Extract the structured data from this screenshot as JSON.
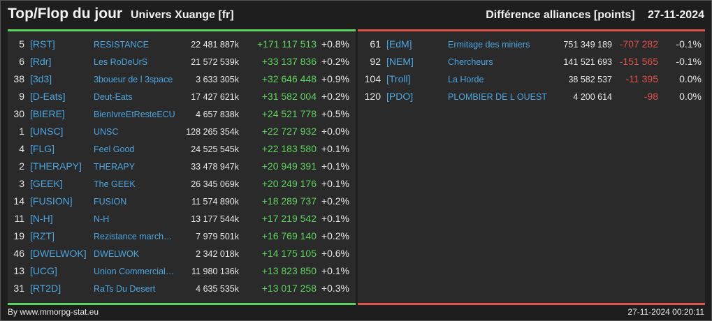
{
  "header": {
    "title": "Top/Flop du jour",
    "universe": "Univers Xuange [fr]",
    "section": "Différence alliances [points]",
    "date": "27-11-2024"
  },
  "colors": {
    "positive": "#5fd35f",
    "negative": "#e0524b",
    "link": "#4da6e0"
  },
  "top": [
    {
      "rank": "5",
      "tag": "[RST]",
      "name": "RESISTANCE",
      "points": "22 481 887k",
      "diff": "+171 117 513",
      "pct": "+0.8%"
    },
    {
      "rank": "6",
      "tag": "[Rdr]",
      "name": "Les RoDeUrS",
      "points": "21 572 539k",
      "diff": "+33 137 836",
      "pct": "+0.2%"
    },
    {
      "rank": "38",
      "tag": "[3d3]",
      "name": "3boueur de l 3space",
      "points": "3 633 305k",
      "diff": "+32 646 448",
      "pct": "+0.9%"
    },
    {
      "rank": "9",
      "tag": "[D-Eats]",
      "name": "Deut-Eats",
      "points": "17 427 621k",
      "diff": "+31 582 004",
      "pct": "+0.2%"
    },
    {
      "rank": "30",
      "tag": "[BIERE]",
      "name": "BienIvreEtResteECU",
      "points": "4 657 838k",
      "diff": "+24 521 778",
      "pct": "+0.5%"
    },
    {
      "rank": "1",
      "tag": "[UNSC]",
      "name": "UNSC",
      "points": "128 265 354k",
      "diff": "+22 727 932",
      "pct": "+0.0%"
    },
    {
      "rank": "4",
      "tag": "[FLG]",
      "name": "Feel Good",
      "points": "24 525 545k",
      "diff": "+22 183 580",
      "pct": "+0.1%"
    },
    {
      "rank": "2",
      "tag": "[THERAPY]",
      "name": "THERAPY",
      "points": "33 478 947k",
      "diff": "+20 949 391",
      "pct": "+0.1%"
    },
    {
      "rank": "3",
      "tag": "[GEEK]",
      "name": "The GEEK",
      "points": "26 345 069k",
      "diff": "+20 249 176",
      "pct": "+0.1%"
    },
    {
      "rank": "14",
      "tag": "[FUSION]",
      "name": "FUSION",
      "points": "11 574 890k",
      "diff": "+18 289 737",
      "pct": "+0.2%"
    },
    {
      "rank": "11",
      "tag": "[N-H]",
      "name": "N-H",
      "points": "13 177 544k",
      "diff": "+17 219 542",
      "pct": "+0.1%"
    },
    {
      "rank": "19",
      "tag": "[RZT]",
      "name": "Rezistance march…",
      "points": "7 979 501k",
      "diff": "+16 769 140",
      "pct": "+0.2%"
    },
    {
      "rank": "46",
      "tag": "[DWELWOK]",
      "name": "DWELWOK",
      "points": "2 342 018k",
      "diff": "+14 175 105",
      "pct": "+0.6%"
    },
    {
      "rank": "13",
      "tag": "[UCG]",
      "name": "Union Commerciale…",
      "points": "11 980 136k",
      "diff": "+13 823 850",
      "pct": "+0.1%"
    },
    {
      "rank": "31",
      "tag": "[RT2D]",
      "name": "RaTs Du Desert",
      "points": "4 635 535k",
      "diff": "+13 017 258",
      "pct": "+0.3%"
    }
  ],
  "flop": [
    {
      "rank": "61",
      "tag": "[EdM]",
      "name": "Ermitage des miniers",
      "points": "751 349 189",
      "diff": "-707 282",
      "pct": "-0.1%"
    },
    {
      "rank": "92",
      "tag": "[NEM]",
      "name": "Chercheurs",
      "points": "141 521 693",
      "diff": "-151 565",
      "pct": "-0.1%"
    },
    {
      "rank": "104",
      "tag": "[Troll]",
      "name": "La Horde",
      "points": "38 582 537",
      "diff": "-11 395",
      "pct": "0.0%"
    },
    {
      "rank": "120",
      "tag": "[PDO]",
      "name": "PLOMBIER DE L OUEST",
      "points": "4 200 614",
      "diff": "-98",
      "pct": "0.0%"
    }
  ],
  "footer": {
    "credit": "By www.mmorpg-stat.eu",
    "timestamp": "27-11-2024 00:20:11"
  }
}
